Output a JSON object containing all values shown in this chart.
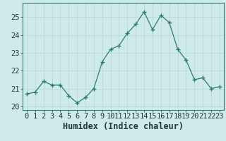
{
  "x": [
    0,
    1,
    2,
    3,
    4,
    5,
    6,
    7,
    8,
    9,
    10,
    11,
    12,
    13,
    14,
    15,
    16,
    17,
    18,
    19,
    20,
    21,
    22,
    23
  ],
  "y": [
    20.7,
    20.8,
    21.4,
    21.2,
    21.2,
    20.6,
    20.2,
    20.5,
    21.0,
    22.5,
    23.2,
    23.4,
    24.1,
    24.6,
    25.3,
    24.3,
    25.1,
    24.7,
    23.2,
    22.6,
    21.5,
    21.6,
    21.0,
    21.1
  ],
  "xlabel": "Humidex (Indice chaleur)",
  "ylim": [
    19.8,
    25.8
  ],
  "xlim": [
    -0.5,
    23.5
  ],
  "yticks": [
    20,
    21,
    22,
    23,
    24,
    25
  ],
  "xtick_labels": [
    "0",
    "1",
    "2",
    "3",
    "4",
    "5",
    "6",
    "7",
    "8",
    "9",
    "10",
    "11",
    "12",
    "13",
    "14",
    "15",
    "16",
    "17",
    "18",
    "19",
    "20",
    "21",
    "22",
    "23"
  ],
  "line_color": "#2d7d6d",
  "bg_color": "#ceeaea",
  "grid_color": "#b8d4d4",
  "fig_bg": "#ceeaea",
  "tick_label_fontsize": 7.5,
  "xlabel_fontsize": 8.5
}
